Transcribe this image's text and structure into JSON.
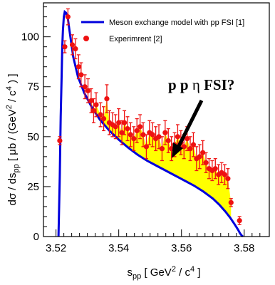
{
  "chart_data": {
    "type": "scatter",
    "title": "",
    "xlabel": "s_pp [GeV²/c⁴]",
    "ylabel": "dσ/ds_pp [μb/(GeV²/c⁴)]",
    "xlim": [
      3.516,
      3.588
    ],
    "ylim": [
      0,
      117
    ],
    "x_ticks": [
      "3.52",
      "3.54",
      "3.56",
      "3.58"
    ],
    "y_ticks": [
      "0",
      "25",
      "50",
      "75",
      "100"
    ],
    "legend": {
      "placement": "top-right"
    },
    "annotation": {
      "label": "p p",
      "symbol": "η",
      "suffix": "FSI?"
    },
    "series": [
      {
        "name": "Meson exchange model with pp FSI [1]",
        "kind": "line",
        "color": "#0000dd",
        "x": [
          3.5208,
          3.5212,
          3.5215,
          3.5218,
          3.522,
          3.5222,
          3.5225,
          3.5228,
          3.5232,
          3.5238,
          3.5245,
          3.5255,
          3.527,
          3.529,
          3.5315,
          3.534,
          3.537,
          3.54,
          3.543,
          3.546,
          3.549,
          3.552,
          3.555,
          3.558,
          3.561,
          3.564,
          3.567,
          3.57,
          3.572,
          3.574,
          3.5755,
          3.577,
          3.578,
          3.5787,
          3.5792,
          3.5796
        ],
        "y": [
          0,
          30,
          60,
          80,
          95,
          103,
          110,
          112.5,
          112,
          109,
          101,
          90,
          80,
          72,
          64.5,
          58.5,
          53,
          48.5,
          44.5,
          41,
          38,
          35.5,
          33,
          30.5,
          28,
          25.5,
          22.5,
          19,
          16,
          12.5,
          9.5,
          6,
          3.5,
          1.5,
          0.5,
          0
        ]
      },
      {
        "name": "Experimrent [2]",
        "kind": "points",
        "color": "#ee1111",
        "band_color": "#ffff00",
        "x": [
          3.5212,
          3.5228,
          3.5238,
          3.5252,
          3.5262,
          3.5272,
          3.528,
          3.5292,
          3.5302,
          3.5312,
          3.532,
          3.5328,
          3.5342,
          3.5352,
          3.5362,
          3.537,
          3.538,
          3.539,
          3.54,
          3.541,
          3.5418,
          3.5428,
          3.5438,
          3.5448,
          3.5458,
          3.5468,
          3.5478,
          3.5488,
          3.5498,
          3.5508,
          3.5518,
          3.5528,
          3.5538,
          3.5548,
          3.5558,
          3.5568,
          3.5578,
          3.5588,
          3.5598,
          3.5608,
          3.5618,
          3.5628,
          3.5638,
          3.5648,
          3.5658,
          3.5668,
          3.5678,
          3.5688,
          3.5698,
          3.5708,
          3.5718,
          3.5728,
          3.5738,
          3.5748,
          3.5758,
          3.5785
        ],
        "y": [
          48,
          95,
          110,
          96,
          94,
          85,
          81,
          75,
          73,
          68,
          63,
          66,
          61,
          59,
          69,
          57,
          56,
          55,
          57,
          52,
          57,
          54,
          51,
          49,
          53,
          55,
          51,
          45,
          52,
          51,
          49,
          50,
          44,
          52,
          48,
          44,
          46,
          50,
          47,
          45,
          49,
          44,
          46,
          39,
          40,
          42,
          37,
          34,
          33,
          34,
          31,
          32,
          31,
          29,
          17,
          8
        ],
        "err": [
          2,
          3,
          4,
          5,
          5,
          6,
          6,
          6,
          6,
          6,
          6,
          6,
          6,
          6,
          7,
          6,
          6,
          6,
          7,
          6,
          6,
          6,
          6,
          6,
          6,
          6,
          6,
          6,
          6,
          6,
          6,
          6,
          6,
          6,
          6,
          6,
          6,
          6,
          6,
          6,
          6,
          6,
          6,
          6,
          6,
          6,
          5,
          5,
          5,
          5,
          5,
          5,
          5,
          5,
          2,
          2
        ]
      }
    ]
  }
}
